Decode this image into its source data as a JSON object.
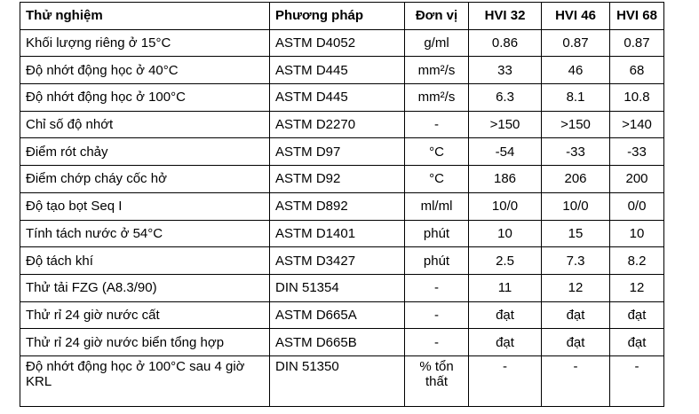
{
  "table": {
    "header": [
      "Thử nghiệm",
      "Phương pháp",
      "Đơn vị",
      "HVI 32",
      "HVI 46",
      "HVI 68"
    ],
    "rows": [
      [
        "Khối lượng riêng ở 15°C",
        "ASTM D4052",
        "g/ml",
        "0.86",
        "0.87",
        "0.87"
      ],
      [
        "Độ nhớt động học ở 40°C",
        "ASTM D445",
        "mm²/s",
        "33",
        "46",
        "68"
      ],
      [
        "Độ nhớt động học ở 100°C",
        "ASTM D445",
        "mm²/s",
        "6.3",
        "8.1",
        "10.8"
      ],
      [
        "Chỉ số độ nhớt",
        "ASTM D2270",
        "-",
        ">150",
        ">150",
        ">140"
      ],
      [
        "Điểm rót chảy",
        "ASTM D97",
        "°C",
        "-54",
        "-33",
        "-33"
      ],
      [
        "Điểm chớp cháy cốc hở",
        "ASTM D92",
        "°C",
        "186",
        "206",
        "200"
      ],
      [
        "Độ tạo bọt Seq I",
        "ASTM D892",
        "ml/ml",
        "10/0",
        "10/0",
        "0/0"
      ],
      [
        "Tính tách nước ở 54°C",
        "ASTM D1401",
        "phút",
        "10",
        "15",
        "10"
      ],
      [
        "Độ tách khí",
        "ASTM D3427",
        "phút",
        "2.5",
        "7.3",
        "8.2"
      ],
      [
        "Thử tải FZG (A8.3/90)",
        "DIN 51354",
        "-",
        "11",
        "12",
        "12"
      ],
      [
        "Thử rỉ 24 giờ nước cất",
        "ASTM D665A",
        "-",
        "đạt",
        "đạt",
        "đạt"
      ],
      [
        "Thử rỉ 24 giờ nước biển tổng hợp",
        "ASTM D665B",
        "-",
        "đạt",
        "đạt",
        "đạt"
      ],
      [
        "Độ nhớt động học ở 100°C sau 4 giờ KRL",
        "DIN 51350",
        "% tổn thất",
        "-",
        "-",
        "-"
      ]
    ]
  }
}
